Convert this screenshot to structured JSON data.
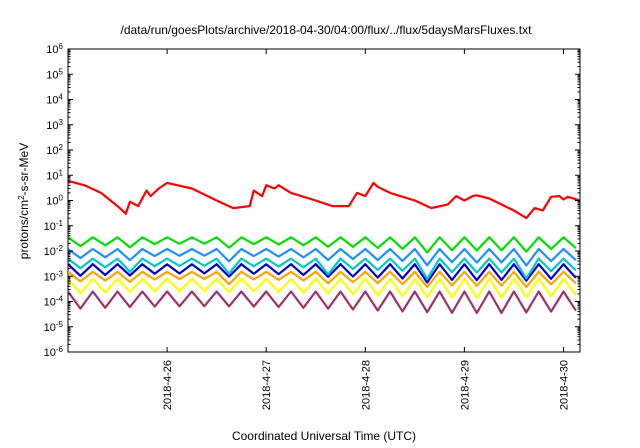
{
  "chart_data": {
    "type": "line",
    "title": "/data/run/goesPlots/archive/2018-04-30/04:00/flux/../flux/5daysMarsFluxes.txt",
    "xlabel": "Coordinated Universal Time (UTC)",
    "ylabel": {
      "prefix": "protons/cm",
      "superscript": "2",
      "suffix": "-s-sr-MeV"
    },
    "yscale": "log",
    "ylim": [
      1e-06,
      1000000.0
    ],
    "xlim": [
      "2018-04-25T00:00",
      "2018-04-30T04:00"
    ],
    "ytick_labels": [
      {
        "value": 1e-06,
        "base": "10",
        "exp": "-6"
      },
      {
        "value": 1e-05,
        "base": "10",
        "exp": "-5"
      },
      {
        "value": 0.0001,
        "base": "10",
        "exp": "-4"
      },
      {
        "value": 0.001,
        "base": "10",
        "exp": "-3"
      },
      {
        "value": 0.01,
        "base": "10",
        "exp": "-2"
      },
      {
        "value": 0.1,
        "base": "10",
        "exp": "-1"
      },
      {
        "value": 1,
        "base": "10",
        "exp": "0"
      },
      {
        "value": 10,
        "base": "10",
        "exp": "1"
      },
      {
        "value": 100,
        "base": "10",
        "exp": "2"
      },
      {
        "value": 1000,
        "base": "10",
        "exp": "3"
      },
      {
        "value": 10000,
        "base": "10",
        "exp": "4"
      },
      {
        "value": 100000,
        "base": "10",
        "exp": "5"
      },
      {
        "value": 1000000,
        "base": "10",
        "exp": "6"
      }
    ],
    "xticks": [
      {
        "x": "2018-04-26T00:00",
        "label": "2018-4-26"
      },
      {
        "x": "2018-04-27T00:00",
        "label": "2018-4-27"
      },
      {
        "x": "2018-04-28T00:00",
        "label": "2018-4-28"
      },
      {
        "x": "2018-04-29T00:00",
        "label": "2018-4-29"
      },
      {
        "x": "2018-04-30T00:00",
        "label": "2018-4-30"
      }
    ],
    "grid": false,
    "legend": "none",
    "series": [
      {
        "color": "#ff0000",
        "x": [
          "2018-04-25T00:00",
          "2018-04-25T04:00",
          "2018-04-25T08:00",
          "2018-04-25T12:00",
          "2018-04-25T14:00",
          "2018-04-25T15:00",
          "2018-04-25T17:00",
          "2018-04-25T19:00",
          "2018-04-25T20:00",
          "2018-04-25T22:00",
          "2018-04-26T00:00",
          "2018-04-26T06:00",
          "2018-04-26T12:00",
          "2018-04-26T16:00",
          "2018-04-26T20:00",
          "2018-04-26T21:00",
          "2018-04-26T23:00",
          "2018-04-27T00:00",
          "2018-04-27T02:00",
          "2018-04-27T03:00",
          "2018-04-27T06:00",
          "2018-04-27T12:00",
          "2018-04-27T16:00",
          "2018-04-27T20:00",
          "2018-04-27T22:00",
          "2018-04-28T00:00",
          "2018-04-28T02:00",
          "2018-04-28T03:00",
          "2018-04-28T06:00",
          "2018-04-28T12:00",
          "2018-04-28T16:00",
          "2018-04-28T20:00",
          "2018-04-28T22:00",
          "2018-04-29T00:00",
          "2018-04-29T02:00",
          "2018-04-29T03:00",
          "2018-04-29T06:00",
          "2018-04-29T12:00",
          "2018-04-29T15:00",
          "2018-04-29T17:00",
          "2018-04-29T19:00",
          "2018-04-29T21:00",
          "2018-04-29T23:00",
          "2018-04-30T00:00",
          "2018-04-30T01:00",
          "2018-04-30T04:00"
        ],
        "values": [
          6,
          4,
          2,
          0.6,
          0.3,
          0.9,
          0.6,
          2.5,
          1.5,
          3,
          5,
          3,
          1,
          0.5,
          0.6,
          2.5,
          1.5,
          4,
          3,
          4,
          2,
          1,
          0.6,
          0.6,
          2,
          1.5,
          5,
          3.5,
          2,
          1,
          0.5,
          0.7,
          1.5,
          1,
          1.5,
          1.6,
          1.2,
          0.4,
          0.2,
          0.5,
          0.4,
          1.4,
          1.5,
          1.1,
          1.4,
          1.0
        ]
      },
      {
        "color": "#00e000",
        "pattern": {
          "high": 0.035,
          "low": 0.015,
          "drops": [
            0.01,
            0.009,
            0.012,
            0.01,
            0.011
          ]
        }
      },
      {
        "color": "#1e90ff",
        "pattern": {
          "high": 0.012,
          "low": 0.005,
          "drops": [
            0.003,
            0.0025,
            0.0035,
            0.003,
            0.003
          ]
        }
      },
      {
        "color": "#00c8c8",
        "pattern": {
          "high": 0.005,
          "low": 0.002,
          "drops": [
            0.001,
            0.0008,
            0.0009,
            0.0008,
            0.0009
          ]
        }
      },
      {
        "color": "#0000cd",
        "pattern": {
          "high": 0.003,
          "low": 0.001,
          "drops": [
            0.0006,
            0.0005,
            0.0006,
            0.0005,
            0.0006
          ]
        }
      },
      {
        "color": "#ffa500",
        "pattern": {
          "high": 0.0015,
          "low": 0.0006,
          "drops": [
            0.0004,
            0.0003,
            0.0004,
            0.0004,
            0.0004
          ]
        }
      },
      {
        "color": "#ffff00",
        "pattern": {
          "high": 0.0008,
          "low": 0.0002,
          "drops": [
            0.0001,
            9e-05,
            0.0001,
            0.0001,
            0.0001
          ]
        }
      },
      {
        "color": "#a0306a",
        "pattern": {
          "high": 0.00025,
          "low": 5e-05,
          "drops": [
            3e-05,
            3e-05,
            3e-05,
            4e-05,
            3e-05
          ]
        }
      }
    ]
  }
}
